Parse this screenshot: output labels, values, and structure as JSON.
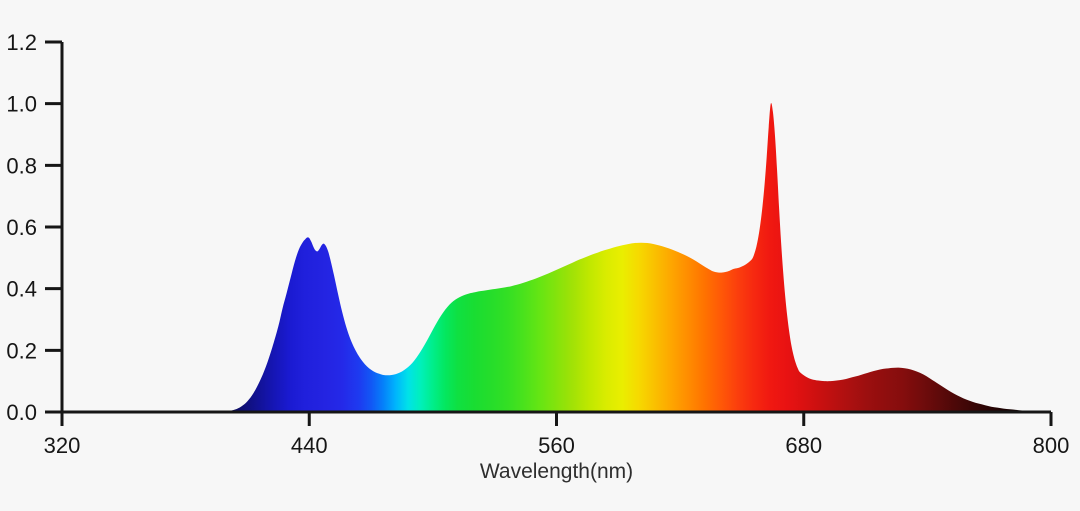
{
  "page": {
    "background": "#f7f7f7"
  },
  "chart_data": {
    "type": "area",
    "title": "",
    "xlabel": "Wavelength(nm)",
    "ylabel": "",
    "grid": false,
    "legend": false,
    "axis_color": "#161616",
    "tick_label_color": "#161616",
    "axis_title_color": "#2e2e2e",
    "x_axis": {
      "min": 320,
      "max": 800,
      "tick_values": [
        320,
        440,
        560,
        680,
        800
      ],
      "tick_labels": [
        "320",
        "440",
        "560",
        "680",
        "800"
      ]
    },
    "y_axis": {
      "min": 0,
      "max": 1.2,
      "tick_values": [
        0,
        0.2,
        0.4,
        0.6,
        0.8,
        1.0,
        1.2
      ],
      "tick_labels": [
        "0.0",
        "0.2",
        "0.4",
        "0.6",
        "0.8",
        "1.0",
        "1.2"
      ]
    },
    "series": [
      {
        "name": "relative-spectral-power",
        "fill": "wavelength-gradient",
        "points": [
          [
            398,
            0
          ],
          [
            401,
            0.003
          ],
          [
            404,
            0.008
          ],
          [
            407,
            0.018
          ],
          [
            410,
            0.035
          ],
          [
            413,
            0.062
          ],
          [
            416,
            0.1
          ],
          [
            419,
            0.148
          ],
          [
            422,
            0.208
          ],
          [
            425,
            0.278
          ],
          [
            427,
            0.335
          ],
          [
            429,
            0.385
          ],
          [
            431,
            0.437
          ],
          [
            433,
            0.488
          ],
          [
            435,
            0.528
          ],
          [
            437,
            0.552
          ],
          [
            438,
            0.56
          ],
          [
            439,
            0.566
          ],
          [
            440,
            0.564
          ],
          [
            441,
            0.552
          ],
          [
            442,
            0.536
          ],
          [
            443,
            0.524
          ],
          [
            444,
            0.521
          ],
          [
            445,
            0.529
          ],
          [
            446,
            0.541
          ],
          [
            447,
            0.546
          ],
          [
            448,
            0.539
          ],
          [
            449,
            0.524
          ],
          [
            450,
            0.501
          ],
          [
            452,
            0.444
          ],
          [
            454,
            0.382
          ],
          [
            456,
            0.324
          ],
          [
            458,
            0.275
          ],
          [
            460,
            0.236
          ],
          [
            462,
            0.206
          ],
          [
            464,
            0.182
          ],
          [
            466,
            0.163
          ],
          [
            468,
            0.148
          ],
          [
            470,
            0.137
          ],
          [
            472,
            0.129
          ],
          [
            474,
            0.124
          ],
          [
            476,
            0.12
          ],
          [
            478,
            0.119
          ],
          [
            480,
            0.12
          ],
          [
            482,
            0.123
          ],
          [
            484,
            0.128
          ],
          [
            486,
            0.136
          ],
          [
            488,
            0.146
          ],
          [
            490,
            0.159
          ],
          [
            492,
            0.176
          ],
          [
            494,
            0.196
          ],
          [
            496,
            0.218
          ],
          [
            498,
            0.242
          ],
          [
            500,
            0.267
          ],
          [
            502,
            0.291
          ],
          [
            504,
            0.313
          ],
          [
            506,
            0.332
          ],
          [
            508,
            0.348
          ],
          [
            510,
            0.36
          ],
          [
            512,
            0.369
          ],
          [
            514,
            0.376
          ],
          [
            516,
            0.381
          ],
          [
            518,
            0.385
          ],
          [
            520,
            0.388
          ],
          [
            523,
            0.392
          ],
          [
            526,
            0.395
          ],
          [
            529,
            0.398
          ],
          [
            532,
            0.401
          ],
          [
            535,
            0.404
          ],
          [
            538,
            0.408
          ],
          [
            541,
            0.413
          ],
          [
            544,
            0.419
          ],
          [
            547,
            0.426
          ],
          [
            550,
            0.433
          ],
          [
            553,
            0.441
          ],
          [
            556,
            0.449
          ],
          [
            559,
            0.458
          ],
          [
            562,
            0.467
          ],
          [
            565,
            0.476
          ],
          [
            568,
            0.485
          ],
          [
            571,
            0.494
          ],
          [
            574,
            0.502
          ],
          [
            577,
            0.51
          ],
          [
            580,
            0.517
          ],
          [
            583,
            0.524
          ],
          [
            586,
            0.53
          ],
          [
            589,
            0.536
          ],
          [
            592,
            0.541
          ],
          [
            595,
            0.545
          ],
          [
            598,
            0.548
          ],
          [
            601,
            0.549
          ],
          [
            604,
            0.548
          ],
          [
            607,
            0.545
          ],
          [
            610,
            0.54
          ],
          [
            613,
            0.534
          ],
          [
            616,
            0.527
          ],
          [
            619,
            0.519
          ],
          [
            622,
            0.51
          ],
          [
            625,
            0.5
          ],
          [
            628,
            0.488
          ],
          [
            631,
            0.475
          ],
          [
            634,
            0.463
          ],
          [
            636,
            0.456
          ],
          [
            638,
            0.453
          ],
          [
            640,
            0.452
          ],
          [
            642,
            0.454
          ],
          [
            644,
            0.458
          ],
          [
            646,
            0.464
          ],
          [
            648,
            0.467
          ],
          [
            649,
            0.469
          ],
          [
            651,
            0.475
          ],
          [
            653,
            0.484
          ],
          [
            655,
            0.497
          ],
          [
            656,
            0.513
          ],
          [
            657,
            0.536
          ],
          [
            658,
            0.569
          ],
          [
            659,
            0.613
          ],
          [
            660,
            0.669
          ],
          [
            661,
            0.739
          ],
          [
            662,
            0.826
          ],
          [
            663,
            0.925
          ],
          [
            664,
            1.0
          ],
          [
            665,
            0.975
          ],
          [
            666,
            0.9
          ],
          [
            667,
            0.79
          ],
          [
            668,
            0.665
          ],
          [
            669,
            0.55
          ],
          [
            670,
            0.455
          ],
          [
            671,
            0.375
          ],
          [
            672,
            0.31
          ],
          [
            673,
            0.258
          ],
          [
            674,
            0.216
          ],
          [
            675,
            0.185
          ],
          [
            676,
            0.161
          ],
          [
            677,
            0.143
          ],
          [
            678,
            0.13
          ],
          [
            680,
            0.119
          ],
          [
            682,
            0.111
          ],
          [
            684,
            0.106
          ],
          [
            687,
            0.102
          ],
          [
            690,
            0.1
          ],
          [
            693,
            0.1
          ],
          [
            696,
            0.102
          ],
          [
            699,
            0.105
          ],
          [
            702,
            0.11
          ],
          [
            705,
            0.115
          ],
          [
            708,
            0.121
          ],
          [
            711,
            0.127
          ],
          [
            714,
            0.133
          ],
          [
            717,
            0.138
          ],
          [
            720,
            0.141
          ],
          [
            723,
            0.143
          ],
          [
            726,
            0.144
          ],
          [
            729,
            0.142
          ],
          [
            732,
            0.138
          ],
          [
            735,
            0.131
          ],
          [
            738,
            0.122
          ],
          [
            741,
            0.11
          ],
          [
            744,
            0.097
          ],
          [
            747,
            0.084
          ],
          [
            750,
            0.071
          ],
          [
            753,
            0.059
          ],
          [
            756,
            0.049
          ],
          [
            759,
            0.04
          ],
          [
            762,
            0.033
          ],
          [
            765,
            0.027
          ],
          [
            768,
            0.022
          ],
          [
            771,
            0.017
          ],
          [
            774,
            0.014
          ],
          [
            777,
            0.011
          ],
          [
            780,
            0.009
          ],
          [
            783,
            0.007
          ],
          [
            786,
            0.005
          ],
          [
            789,
            0.004
          ],
          [
            792,
            0.003
          ],
          [
            795,
            0.002
          ],
          [
            798,
            0.001
          ]
        ]
      }
    ],
    "gradient_stops": [
      [
        398,
        "#0a0a48"
      ],
      [
        410,
        "#10107e"
      ],
      [
        420,
        "#1414aa"
      ],
      [
        430,
        "#1a1ad0"
      ],
      [
        438,
        "#2020dc"
      ],
      [
        448,
        "#2424e2"
      ],
      [
        456,
        "#2429e8"
      ],
      [
        464,
        "#1e3af0"
      ],
      [
        470,
        "#1257f5"
      ],
      [
        476,
        "#0581fa"
      ],
      [
        482,
        "#00b5fc"
      ],
      [
        488,
        "#00e2e8"
      ],
      [
        494,
        "#00f0bb"
      ],
      [
        500,
        "#00ee8a"
      ],
      [
        506,
        "#04e75f"
      ],
      [
        512,
        "#0fe042"
      ],
      [
        520,
        "#19dd32"
      ],
      [
        528,
        "#25dd2b"
      ],
      [
        536,
        "#33df24"
      ],
      [
        544,
        "#4ae21c"
      ],
      [
        552,
        "#66e513"
      ],
      [
        560,
        "#84e30c"
      ],
      [
        568,
        "#a2e206"
      ],
      [
        576,
        "#c0e800"
      ],
      [
        584,
        "#d9ec00"
      ],
      [
        592,
        "#eaee00"
      ],
      [
        600,
        "#f6d900"
      ],
      [
        608,
        "#fabf00"
      ],
      [
        616,
        "#fea500"
      ],
      [
        624,
        "#ff8c00"
      ],
      [
        632,
        "#ff7200"
      ],
      [
        640,
        "#ff5807"
      ],
      [
        648,
        "#fb3e0d"
      ],
      [
        656,
        "#f62810"
      ],
      [
        664,
        "#f01811"
      ],
      [
        672,
        "#e81212"
      ],
      [
        680,
        "#da1111"
      ],
      [
        690,
        "#c51010"
      ],
      [
        700,
        "#b01010"
      ],
      [
        710,
        "#9d0f0f"
      ],
      [
        720,
        "#8f0e0e"
      ],
      [
        728,
        "#850d0d"
      ],
      [
        736,
        "#740c0c"
      ],
      [
        745,
        "#600a0a"
      ],
      [
        754,
        "#4b0808"
      ],
      [
        763,
        "#370606"
      ],
      [
        772,
        "#250404"
      ],
      [
        781,
        "#160202"
      ],
      [
        790,
        "#0c0101"
      ],
      [
        798,
        "#060000"
      ]
    ]
  }
}
